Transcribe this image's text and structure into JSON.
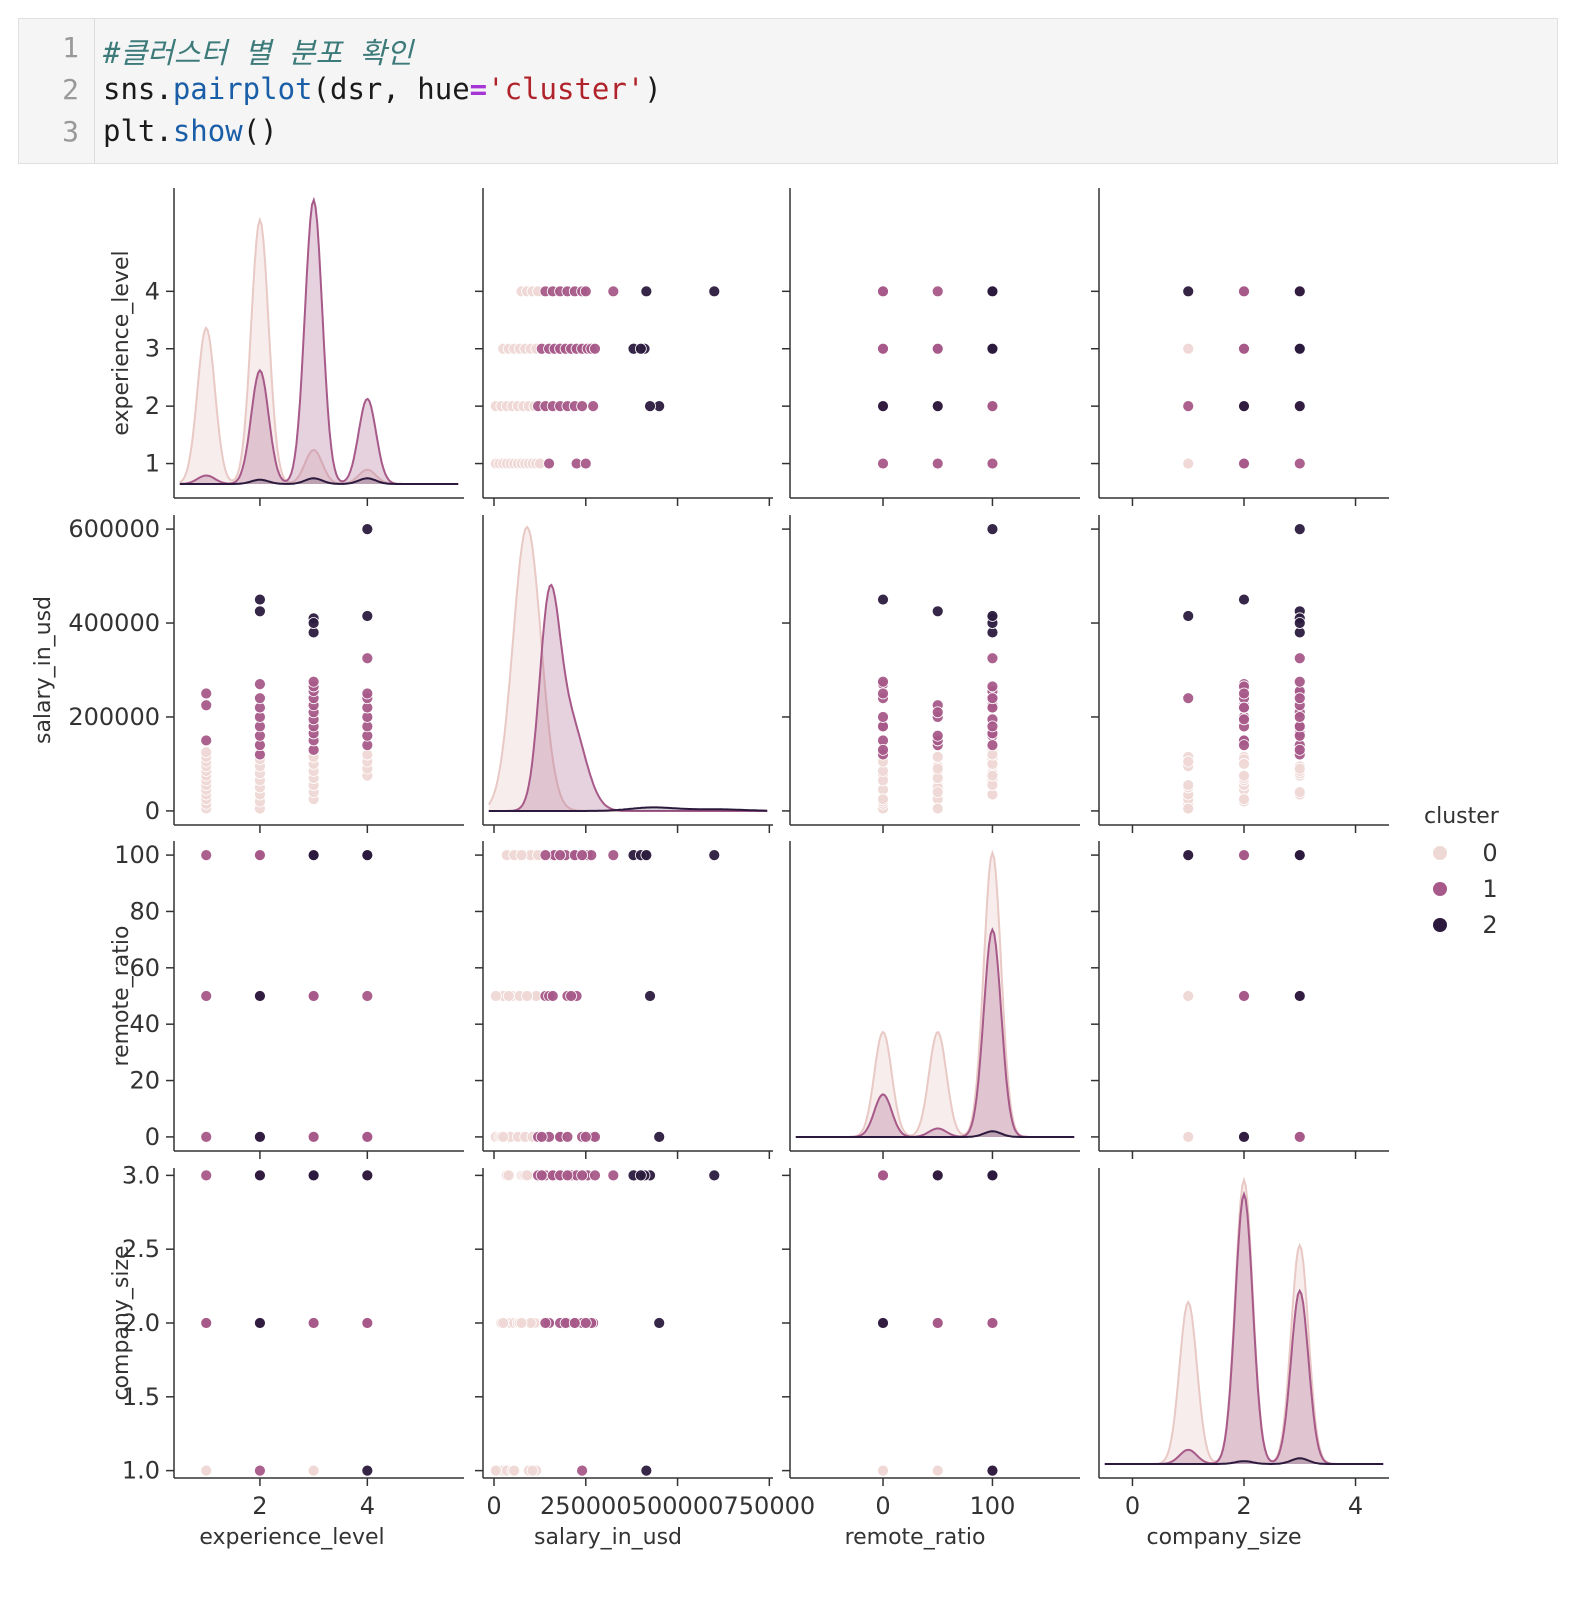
{
  "code": {
    "line_numbers": [
      "1",
      "2",
      "3"
    ],
    "line1_comment": "#클러스터 별 분포 확인",
    "line2": {
      "p1": "sns.",
      "fn": "pairplot",
      "p2": "(dsr, hue",
      "op": "=",
      "str": "'cluster'",
      "p3": ")"
    },
    "line3": {
      "p1": "plt.",
      "fn": "show",
      "p2": "()"
    }
  },
  "chart_data": {
    "type": "pairplot",
    "variables": [
      "experience_level",
      "salary_in_usd",
      "remote_ratio",
      "company_size"
    ],
    "hue": "cluster",
    "legend": {
      "title": "cluster",
      "entries": [
        "0",
        "1",
        "2"
      ],
      "placement": "right"
    },
    "colors": {
      "0": "#eed8d5",
      "1": "#a75a89",
      "2": "#2b1a3d",
      "axis": "#333333"
    },
    "axes": {
      "experience_level": {
        "ticks": [
          1,
          2,
          3,
          4
        ],
        "x_ticks": [
          2,
          4
        ],
        "range": [
          0.4,
          5.8
        ]
      },
      "salary_in_usd": {
        "ticks": [
          0,
          200000,
          400000,
          600000
        ],
        "x_ticks": [
          0,
          250000,
          500000,
          750000
        ],
        "x_tick_labels": [
          "0",
          "250000",
          "500000",
          "750000"
        ],
        "range": [
          -30000,
          630000
        ],
        "x_range": [
          -30000,
          760000
        ]
      },
      "remote_ratio": {
        "ticks": [
          0,
          20,
          40,
          60,
          80,
          100
        ],
        "x_ticks": [
          0,
          100
        ],
        "range": [
          -5,
          105
        ],
        "x_range": [
          -85,
          180
        ]
      },
      "company_size": {
        "ticks": [
          1.0,
          1.5,
          2.0,
          2.5,
          3.0
        ],
        "tick_labels": [
          "1.0",
          "1.5",
          "2.0",
          "2.5",
          "3.0"
        ],
        "x_ticks": [
          0,
          2,
          4
        ],
        "range": [
          0.95,
          3.05
        ],
        "x_range": [
          -0.6,
          4.6
        ]
      }
    },
    "points": {
      "0": [
        [
          1,
          5000,
          0,
          1
        ],
        [
          1,
          15000,
          0,
          1
        ],
        [
          1,
          25000,
          50,
          1
        ],
        [
          1,
          35000,
          100,
          1
        ],
        [
          1,
          45000,
          0,
          2
        ],
        [
          1,
          55000,
          50,
          2
        ],
        [
          1,
          65000,
          100,
          2
        ],
        [
          1,
          75000,
          0,
          3
        ],
        [
          1,
          85000,
          50,
          3
        ],
        [
          1,
          95000,
          100,
          3
        ],
        [
          1,
          105000,
          100,
          1
        ],
        [
          1,
          115000,
          50,
          2
        ],
        [
          1,
          125000,
          0,
          3
        ],
        [
          2,
          5000,
          50,
          1
        ],
        [
          2,
          20000,
          0,
          2
        ],
        [
          2,
          35000,
          100,
          3
        ],
        [
          2,
          50000,
          50,
          1
        ],
        [
          2,
          65000,
          0,
          2
        ],
        [
          2,
          80000,
          100,
          3
        ],
        [
          2,
          95000,
          50,
          1
        ],
        [
          2,
          110000,
          100,
          2
        ],
        [
          2,
          125000,
          0,
          3
        ],
        [
          2,
          140000,
          50,
          2
        ],
        [
          3,
          25000,
          0,
          2
        ],
        [
          3,
          40000,
          50,
          3
        ],
        [
          3,
          55000,
          100,
          1
        ],
        [
          3,
          70000,
          50,
          2
        ],
        [
          3,
          85000,
          0,
          3
        ],
        [
          3,
          100000,
          100,
          2
        ],
        [
          3,
          115000,
          50,
          1
        ],
        [
          3,
          130000,
          100,
          3
        ],
        [
          4,
          75000,
          100,
          2
        ],
        [
          4,
          90000,
          50,
          3
        ],
        [
          4,
          105000,
          0,
          1
        ],
        [
          4,
          120000,
          100,
          3
        ]
      ],
      "1": [
        [
          1,
          150000,
          0,
          2
        ],
        [
          1,
          225000,
          50,
          2
        ],
        [
          1,
          250000,
          100,
          3
        ],
        [
          2,
          120000,
          0,
          3
        ],
        [
          2,
          140000,
          50,
          3
        ],
        [
          2,
          160000,
          100,
          3
        ],
        [
          2,
          180000,
          0,
          2
        ],
        [
          2,
          200000,
          50,
          2
        ],
        [
          2,
          220000,
          100,
          2
        ],
        [
          2,
          240000,
          100,
          1
        ],
        [
          2,
          270000,
          0,
          2
        ],
        [
          3,
          130000,
          0,
          3
        ],
        [
          3,
          150000,
          50,
          2
        ],
        [
          3,
          165000,
          100,
          3
        ],
        [
          3,
          180000,
          0,
          3
        ],
        [
          3,
          195000,
          100,
          2
        ],
        [
          3,
          210000,
          50,
          3
        ],
        [
          3,
          225000,
          100,
          3
        ],
        [
          3,
          240000,
          0,
          2
        ],
        [
          3,
          255000,
          100,
          3
        ],
        [
          3,
          265000,
          100,
          2
        ],
        [
          3,
          275000,
          0,
          3
        ],
        [
          4,
          140000,
          100,
          2
        ],
        [
          4,
          160000,
          50,
          3
        ],
        [
          4,
          180000,
          100,
          3
        ],
        [
          4,
          200000,
          0,
          3
        ],
        [
          4,
          220000,
          100,
          2
        ],
        [
          4,
          240000,
          100,
          3
        ],
        [
          4,
          325000,
          100,
          3
        ],
        [
          4,
          250000,
          0,
          2
        ]
      ],
      "2": [
        [
          2,
          450000,
          0,
          2
        ],
        [
          2,
          425000,
          50,
          3
        ],
        [
          3,
          410000,
          100,
          3
        ],
        [
          3,
          380000,
          100,
          3
        ],
        [
          3,
          400000,
          100,
          3
        ],
        [
          4,
          600000,
          100,
          3
        ],
        [
          4,
          415000,
          100,
          1
        ]
      ]
    },
    "diagonal_kde": {
      "experience_level": {
        "0": [
          [
            1,
            0.55
          ],
          [
            2,
            0.93
          ],
          [
            3,
            0.12
          ],
          [
            4,
            0.05
          ]
        ],
        "1": [
          [
            1,
            0.03
          ],
          [
            2,
            0.4
          ],
          [
            3,
            1.0
          ],
          [
            4,
            0.3
          ]
        ],
        "2": [
          [
            2,
            0.015
          ],
          [
            3,
            0.02
          ],
          [
            4,
            0.02
          ]
        ]
      },
      "salary_in_usd": {
        "0": [
          [
            90000,
            1.0,
            38000
          ]
        ],
        "1": [
          [
            150000,
            0.65,
            27000
          ],
          [
            205000,
            0.32,
            42000
          ]
        ],
        "2": [
          [
            430000,
            0.012,
            60000
          ],
          [
            600000,
            0.006,
            80000
          ]
        ]
      },
      "remote_ratio": {
        "0": [
          [
            0,
            0.37
          ],
          [
            50,
            0.37
          ],
          [
            100,
            1.0
          ]
        ],
        "1": [
          [
            0,
            0.15
          ],
          [
            50,
            0.03
          ],
          [
            100,
            0.73
          ]
        ],
        "2": [
          [
            100,
            0.02
          ]
        ]
      },
      "company_size": {
        "0": [
          [
            1,
            0.57
          ],
          [
            2,
            1.0
          ],
          [
            3,
            0.77
          ]
        ],
        "1": [
          [
            1,
            0.05
          ],
          [
            2,
            0.95
          ],
          [
            3,
            0.61
          ]
        ],
        "2": [
          [
            2,
            0.01
          ],
          [
            3,
            0.02
          ]
        ]
      }
    }
  }
}
